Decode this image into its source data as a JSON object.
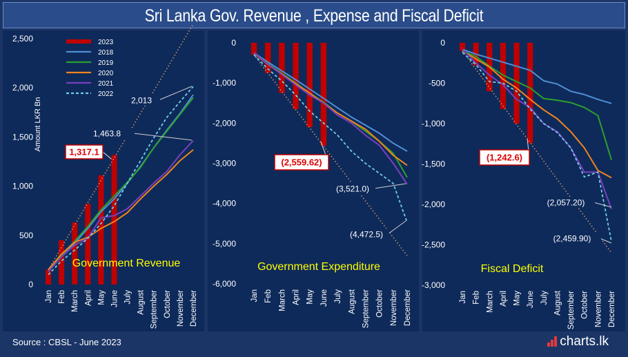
{
  "title": "Sri Lanka Gov. Revenue , Expense and Fiscal Deficit",
  "footer": {
    "source": "Source : CBSL - June 2023",
    "brand": "charts.lk"
  },
  "colors": {
    "y2023": "#c00000",
    "y2018": "#4f8fd6",
    "y2019": "#2ca02c",
    "y2020": "#f0841e",
    "y2021": "#7b3fbf",
    "y2022": "#6fd0e6",
    "trend": "#c9926a",
    "panel_label": "#ffff00"
  },
  "chart_data": [
    {
      "type": "bar+line",
      "title": "Government Revenue",
      "ylabel": "Amount LKR Bn",
      "ylim": [
        0,
        2500
      ],
      "yticks": [
        0,
        500,
        1000,
        1500,
        2000,
        2500
      ],
      "ytick_labels": [
        "0",
        "500",
        "1,000",
        "1,500",
        "2,000",
        "2,500"
      ],
      "categories": [
        "Jan",
        "Feb",
        "March",
        "April",
        "May",
        "June",
        "July",
        "August",
        "September",
        "October",
        "November",
        "December"
      ],
      "legend": [
        "2023",
        "2018",
        "2019",
        "2020",
        "2021",
        "2022"
      ],
      "bars": {
        "name": "2023",
        "values": [
          150,
          450,
          630,
          820,
          1110,
          1317.1
        ]
      },
      "series": [
        {
          "name": "2018",
          "values": [
            140,
            300,
            420,
            570,
            740,
            870,
            1030,
            1200,
            1390,
            1570,
            1740,
            1930
          ]
        },
        {
          "name": "2019",
          "values": [
            140,
            300,
            440,
            590,
            760,
            900,
            1040,
            1190,
            1390,
            1560,
            1730,
            1900
          ]
        },
        {
          "name": "2020",
          "values": [
            150,
            310,
            430,
            480,
            570,
            640,
            730,
            870,
            1000,
            1120,
            1260,
            1370
          ]
        },
        {
          "name": "2021",
          "values": [
            130,
            280,
            400,
            470,
            680,
            700,
            770,
            900,
            1030,
            1150,
            1320,
            1463.8
          ]
        },
        {
          "name": "2022",
          "values": [
            100,
            240,
            350,
            470,
            620,
            800,
            1030,
            1260,
            1490,
            1700,
            1860,
            2013
          ]
        }
      ],
      "trend": {
        "from": [
          1,
          150
        ],
        "to": [
          12,
          2650
        ]
      },
      "annotations": [
        {
          "text": "1,317.1",
          "highlight": true
        },
        {
          "text": "1,463.8",
          "highlight": false
        },
        {
          "text": "2,013",
          "highlight": false
        }
      ]
    },
    {
      "type": "bar+line",
      "title": "Government Expenditure",
      "ylim": [
        -6000,
        0
      ],
      "yticks": [
        0,
        -1000,
        -2000,
        -3000,
        -4000,
        -5000,
        -6000
      ],
      "ytick_labels": [
        "0",
        "-1,000",
        "-2,000",
        "-3,000",
        "-4,000",
        "-5,000",
        "-6,000"
      ],
      "categories": [
        "Jan",
        "Feb",
        "March",
        "April",
        "May",
        "June",
        "July",
        "August",
        "September",
        "October",
        "November",
        "December"
      ],
      "bars": {
        "name": "2023",
        "values": [
          -300,
          -750,
          -1250,
          -1650,
          -2100,
          -2559.62
        ]
      },
      "series": [
        {
          "name": "2018",
          "values": [
            -250,
            -480,
            -700,
            -920,
            -1150,
            -1380,
            -1620,
            -1850,
            -2050,
            -2250,
            -2500,
            -2700
          ]
        },
        {
          "name": "2019",
          "values": [
            -250,
            -520,
            -760,
            -1000,
            -1250,
            -1480,
            -1750,
            -1950,
            -2200,
            -2450,
            -2750,
            -3350
          ]
        },
        {
          "name": "2020",
          "values": [
            -260,
            -540,
            -780,
            -1020,
            -1250,
            -1500,
            -1750,
            -1950,
            -2150,
            -2450,
            -2800,
            -3050
          ]
        },
        {
          "name": "2021",
          "values": [
            -250,
            -530,
            -790,
            -1050,
            -1300,
            -1500,
            -1800,
            -2000,
            -2300,
            -2550,
            -3000,
            -3521.0
          ]
        },
        {
          "name": "2022",
          "values": [
            -300,
            -650,
            -950,
            -1300,
            -1700,
            -2000,
            -2300,
            -2700,
            -3000,
            -3250,
            -3500,
            -4472.5
          ]
        }
      ],
      "trend": {
        "from": [
          1,
          -300
        ],
        "to": [
          12,
          -5300
        ]
      },
      "annotations": [
        {
          "text": "(2,559.62)",
          "highlight": true
        },
        {
          "text": "(3,521.0)",
          "highlight": false
        },
        {
          "text": "(4,472.5)",
          "highlight": false
        }
      ]
    },
    {
      "type": "bar+line",
      "title": "Fiscal Deficit",
      "ylim": [
        -3000,
        0
      ],
      "yticks": [
        0,
        -500,
        -1000,
        -1500,
        -2000,
        -2500,
        -3000
      ],
      "ytick_labels": [
        "0",
        "-500",
        "-1,000",
        "-1,500",
        "-2,000",
        "-2,500",
        "-3,000"
      ],
      "categories": [
        "Jan",
        "Feb",
        "March",
        "April",
        "May",
        "June",
        "July",
        "August",
        "September",
        "October",
        "November",
        "December"
      ],
      "bars": {
        "name": "2023",
        "values": [
          -100,
          -280,
          -600,
          -820,
          -1000,
          -1242.6
        ]
      },
      "series": [
        {
          "name": "2018",
          "values": [
            -80,
            -140,
            -190,
            -240,
            -290,
            -340,
            -470,
            -510,
            -600,
            -640,
            -700,
            -750
          ]
        },
        {
          "name": "2019",
          "values": [
            -100,
            -170,
            -290,
            -400,
            -480,
            -560,
            -690,
            -710,
            -740,
            -800,
            -900,
            -1450
          ]
        },
        {
          "name": "2020",
          "values": [
            -100,
            -200,
            -300,
            -450,
            -560,
            -700,
            -830,
            -940,
            -1100,
            -1300,
            -1580,
            -1670
          ]
        },
        {
          "name": "2021",
          "values": [
            -80,
            -250,
            -400,
            -520,
            -700,
            -800,
            -1000,
            -1100,
            -1300,
            -1600,
            -1600,
            -2057.2
          ]
        },
        {
          "name": "2022",
          "values": [
            -120,
            -270,
            -480,
            -500,
            -600,
            -820,
            -1000,
            -1110,
            -1300,
            -1660,
            -1600,
            -2459.9
          ]
        }
      ],
      "trend": {
        "from": [
          1,
          -100
        ],
        "to": [
          12,
          -2600
        ]
      },
      "annotations": [
        {
          "text": "(1,242.6)",
          "highlight": true
        },
        {
          "text": "(2,057.20)",
          "highlight": false
        },
        {
          "text": "(2,459.90)",
          "highlight": false
        }
      ]
    }
  ]
}
